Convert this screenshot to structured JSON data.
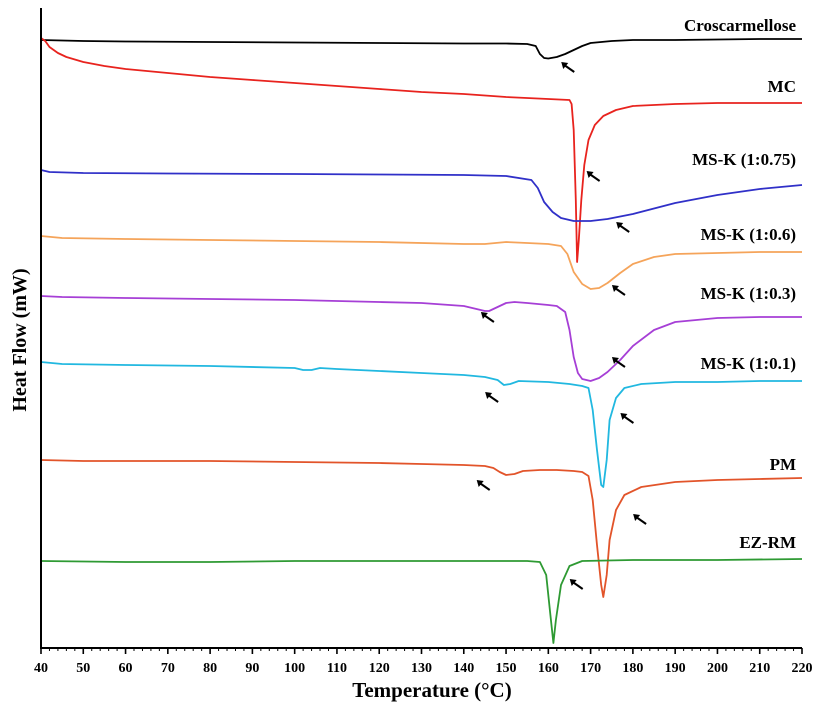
{
  "chart_data": {
    "type": "line",
    "xlabel": "Temperature (°C)",
    "ylabel": "Heat Flow (mW)",
    "xlim": [
      40,
      220
    ],
    "x_ticks": [
      40,
      50,
      60,
      70,
      80,
      90,
      100,
      110,
      120,
      130,
      140,
      150,
      160,
      170,
      180,
      190,
      200,
      210,
      220
    ],
    "y_ticks_shown": false,
    "grid": false,
    "legend": "inline labels at right of each curve",
    "series": [
      {
        "name": "Croscarmellose",
        "color": "#000000",
        "points": [
          [
            40,
            40
          ],
          [
            50,
            41
          ],
          [
            60,
            41.5
          ],
          [
            80,
            42
          ],
          [
            100,
            42.5
          ],
          [
            120,
            43
          ],
          [
            140,
            43.5
          ],
          [
            150,
            43.5
          ],
          [
            155,
            44
          ],
          [
            157,
            46
          ],
          [
            158,
            54
          ],
          [
            159,
            58
          ],
          [
            160,
            58.5
          ],
          [
            162,
            57
          ],
          [
            164,
            54
          ],
          [
            166,
            50
          ],
          [
            168,
            46
          ],
          [
            170,
            43
          ],
          [
            175,
            41
          ],
          [
            180,
            40
          ],
          [
            190,
            40
          ],
          [
            200,
            39.5
          ],
          [
            210,
            39
          ],
          [
            220,
            39
          ]
        ],
        "arrows": [
          [
            164,
            67
          ]
        ]
      },
      {
        "name": "MC",
        "color": "#e8231e",
        "points": [
          [
            40,
            38
          ],
          [
            41,
            41
          ],
          [
            42,
            47
          ],
          [
            44,
            53
          ],
          [
            46,
            57
          ],
          [
            50,
            62
          ],
          [
            55,
            66
          ],
          [
            60,
            69
          ],
          [
            70,
            73
          ],
          [
            80,
            77
          ],
          [
            90,
            80
          ],
          [
            100,
            83
          ],
          [
            110,
            86
          ],
          [
            120,
            89
          ],
          [
            130,
            92
          ],
          [
            140,
            94
          ],
          [
            150,
            97
          ],
          [
            160,
            99
          ],
          [
            165,
            100
          ],
          [
            165.5,
            104
          ],
          [
            166,
            130
          ],
          [
            166.5,
            200
          ],
          [
            166.8,
            262
          ],
          [
            167.2,
            240
          ],
          [
            167.8,
            200
          ],
          [
            168.5,
            165
          ],
          [
            169.5,
            140
          ],
          [
            171,
            125
          ],
          [
            173,
            116
          ],
          [
            176,
            110
          ],
          [
            180,
            106
          ],
          [
            190,
            104
          ],
          [
            200,
            103
          ],
          [
            210,
            103
          ],
          [
            220,
            103
          ]
        ],
        "arrows": [
          [
            170,
            176
          ]
        ]
      },
      {
        "name": "MS-K (1:0.75)",
        "color": "#3030c8",
        "points": [
          [
            40,
            170
          ],
          [
            42,
            172
          ],
          [
            50,
            173
          ],
          [
            70,
            173.5
          ],
          [
            100,
            174
          ],
          [
            120,
            174.5
          ],
          [
            140,
            175
          ],
          [
            150,
            176
          ],
          [
            156,
            180
          ],
          [
            157.5,
            188
          ],
          [
            159,
            202
          ],
          [
            161,
            212
          ],
          [
            163,
            218
          ],
          [
            166,
            221
          ],
          [
            170,
            221
          ],
          [
            174,
            219
          ],
          [
            180,
            214
          ],
          [
            190,
            203
          ],
          [
            200,
            195
          ],
          [
            210,
            189
          ],
          [
            220,
            185
          ]
        ],
        "arrows": [
          [
            177,
            227
          ]
        ]
      },
      {
        "name": "MS-K (1:0.6)",
        "color": "#f5a45a",
        "points": [
          [
            40,
            236
          ],
          [
            45,
            238
          ],
          [
            60,
            239
          ],
          [
            80,
            240
          ],
          [
            100,
            241
          ],
          [
            120,
            242
          ],
          [
            140,
            244
          ],
          [
            145,
            244
          ],
          [
            150,
            242
          ],
          [
            155,
            243
          ],
          [
            160,
            244
          ],
          [
            163,
            246
          ],
          [
            164.5,
            254
          ],
          [
            166,
            272
          ],
          [
            168,
            284
          ],
          [
            170,
            289
          ],
          [
            172,
            288
          ],
          [
            174,
            283
          ],
          [
            177,
            273
          ],
          [
            180,
            264
          ],
          [
            185,
            257
          ],
          [
            190,
            254
          ],
          [
            200,
            253
          ],
          [
            210,
            252
          ],
          [
            220,
            252
          ]
        ],
        "arrows": [
          [
            176,
            290
          ]
        ]
      },
      {
        "name": "MS-K (1:0.3)",
        "color": "#a63fd6",
        "points": [
          [
            40,
            296
          ],
          [
            45,
            297
          ],
          [
            60,
            298
          ],
          [
            80,
            299
          ],
          [
            100,
            300
          ],
          [
            120,
            302
          ],
          [
            130,
            303
          ],
          [
            140,
            306
          ],
          [
            143,
            309
          ],
          [
            145,
            311
          ],
          [
            146,
            311
          ],
          [
            148,
            307
          ],
          [
            150,
            303
          ],
          [
            152,
            302
          ],
          [
            155,
            303
          ],
          [
            160,
            305
          ],
          [
            162,
            306
          ],
          [
            164,
            312
          ],
          [
            165,
            330
          ],
          [
            166,
            357
          ],
          [
            167,
            373
          ],
          [
            168,
            379
          ],
          [
            170,
            381
          ],
          [
            172,
            378
          ],
          [
            174,
            372
          ],
          [
            177,
            360
          ],
          [
            180,
            346
          ],
          [
            185,
            330
          ],
          [
            190,
            322
          ],
          [
            200,
            318
          ],
          [
            210,
            317
          ],
          [
            220,
            317
          ]
        ],
        "arrows": [
          [
            176,
            362
          ],
          [
            145,
            317
          ]
        ]
      },
      {
        "name": "MS-K (1:0.1)",
        "color": "#21b8e0",
        "points": [
          [
            40,
            362
          ],
          [
            45,
            364
          ],
          [
            60,
            365
          ],
          [
            80,
            366
          ],
          [
            100,
            368
          ],
          [
            102,
            370
          ],
          [
            104,
            370
          ],
          [
            106,
            368
          ],
          [
            110,
            369
          ],
          [
            120,
            371
          ],
          [
            130,
            373
          ],
          [
            140,
            375
          ],
          [
            145,
            377
          ],
          [
            148,
            380
          ],
          [
            149.5,
            385
          ],
          [
            151,
            384
          ],
          [
            153,
            381
          ],
          [
            160,
            382
          ],
          [
            165,
            384
          ],
          [
            168,
            386
          ],
          [
            169.5,
            388
          ],
          [
            170.5,
            410
          ],
          [
            171.5,
            450
          ],
          [
            172.5,
            485
          ],
          [
            173,
            487
          ],
          [
            173.8,
            460
          ],
          [
            174.5,
            420
          ],
          [
            176,
            398
          ],
          [
            178,
            388
          ],
          [
            182,
            384
          ],
          [
            190,
            382
          ],
          [
            200,
            382
          ],
          [
            210,
            381
          ],
          [
            220,
            381
          ]
        ],
        "arrows": [
          [
            178,
            418
          ],
          [
            146,
            397
          ]
        ]
      },
      {
        "name": "PM",
        "color": "#e2542a",
        "points": [
          [
            40,
            460
          ],
          [
            50,
            461
          ],
          [
            60,
            461
          ],
          [
            80,
            461
          ],
          [
            100,
            462
          ],
          [
            120,
            463
          ],
          [
            130,
            464
          ],
          [
            140,
            465
          ],
          [
            145,
            466
          ],
          [
            147,
            468
          ],
          [
            148.5,
            472
          ],
          [
            150,
            475
          ],
          [
            152,
            474
          ],
          [
            154,
            471
          ],
          [
            158,
            470
          ],
          [
            162,
            470
          ],
          [
            166,
            471
          ],
          [
            168,
            472
          ],
          [
            169.5,
            476
          ],
          [
            170.5,
            500
          ],
          [
            171.5,
            545
          ],
          [
            172.5,
            585
          ],
          [
            173,
            597
          ],
          [
            173.8,
            575
          ],
          [
            174.5,
            540
          ],
          [
            176,
            510
          ],
          [
            178,
            495
          ],
          [
            182,
            487
          ],
          [
            190,
            482
          ],
          [
            200,
            480
          ],
          [
            210,
            479
          ],
          [
            220,
            478
          ]
        ],
        "arrows": [
          [
            181,
            519
          ],
          [
            144,
            485
          ]
        ]
      },
      {
        "name": "EZ-RM",
        "color": "#2e9a33",
        "points": [
          [
            40,
            561
          ],
          [
            60,
            562
          ],
          [
            80,
            562
          ],
          [
            100,
            561
          ],
          [
            120,
            561
          ],
          [
            140,
            561
          ],
          [
            150,
            561
          ],
          [
            155,
            561
          ],
          [
            158,
            562
          ],
          [
            159.5,
            575
          ],
          [
            160.5,
            615
          ],
          [
            161.2,
            643
          ],
          [
            161.8,
            620
          ],
          [
            163,
            585
          ],
          [
            165,
            566
          ],
          [
            168,
            561
          ],
          [
            180,
            560
          ],
          [
            200,
            560
          ],
          [
            220,
            559
          ]
        ],
        "arrows": [
          [
            166,
            584
          ]
        ]
      }
    ]
  }
}
